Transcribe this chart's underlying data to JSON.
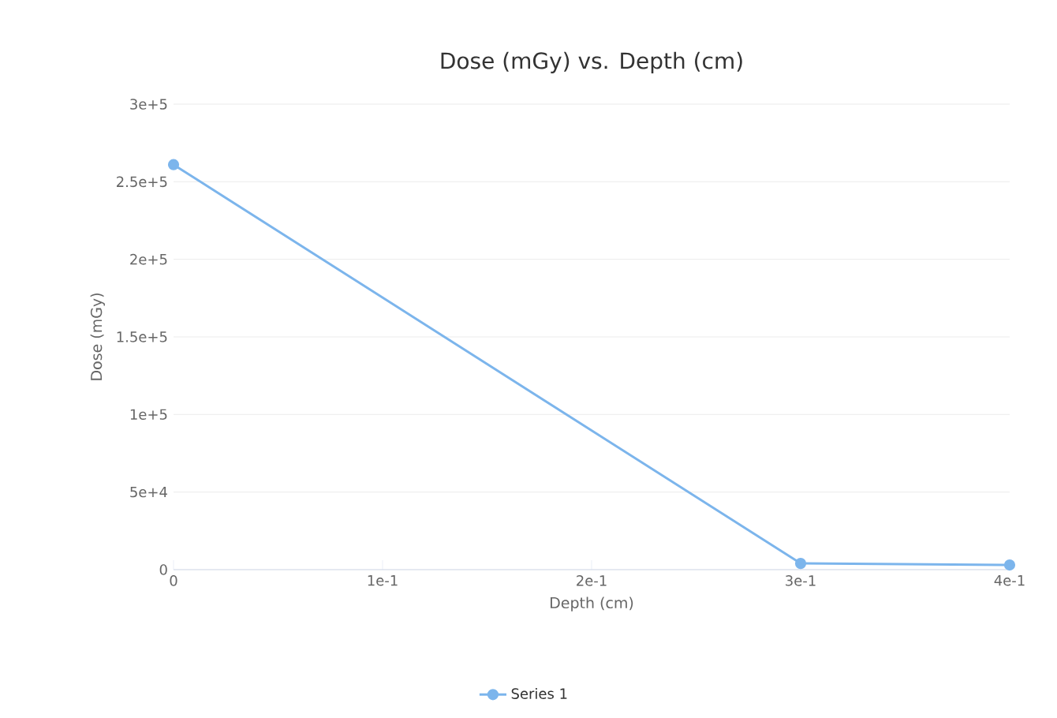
{
  "chart_data": {
    "type": "line",
    "title": "Dose (mGy) vs. Depth (cm)",
    "xlabel": "Depth (cm)",
    "ylabel": "Dose (mGy)",
    "x": [
      0,
      0.3,
      0.4
    ],
    "series": [
      {
        "name": "Series 1",
        "color": "#7cb5ec",
        "values": [
          261000,
          4000,
          3000
        ]
      }
    ],
    "xlim": [
      0,
      0.4
    ],
    "ylim": [
      0,
      300000
    ],
    "xticks": [
      0,
      {
        "value": 0.1,
        "label": "1e-1"
      },
      {
        "value": 0.2,
        "label": "2e-1"
      },
      {
        "value": 0.3,
        "label": "3e-1"
      },
      {
        "value": 0.4,
        "label": "4e-1"
      }
    ],
    "yticks": [
      0,
      {
        "value": 50000,
        "label": "5e+4"
      },
      {
        "value": 100000,
        "label": "1e+5"
      },
      {
        "value": 150000,
        "label": "1.5e+5"
      },
      {
        "value": 200000,
        "label": "2e+5"
      },
      {
        "value": 250000,
        "label": "2.5e+5"
      },
      {
        "value": 300000,
        "label": "3e+5"
      }
    ],
    "grid": "y",
    "legend": "bottom",
    "marker": "circle",
    "line_style": "solid"
  }
}
